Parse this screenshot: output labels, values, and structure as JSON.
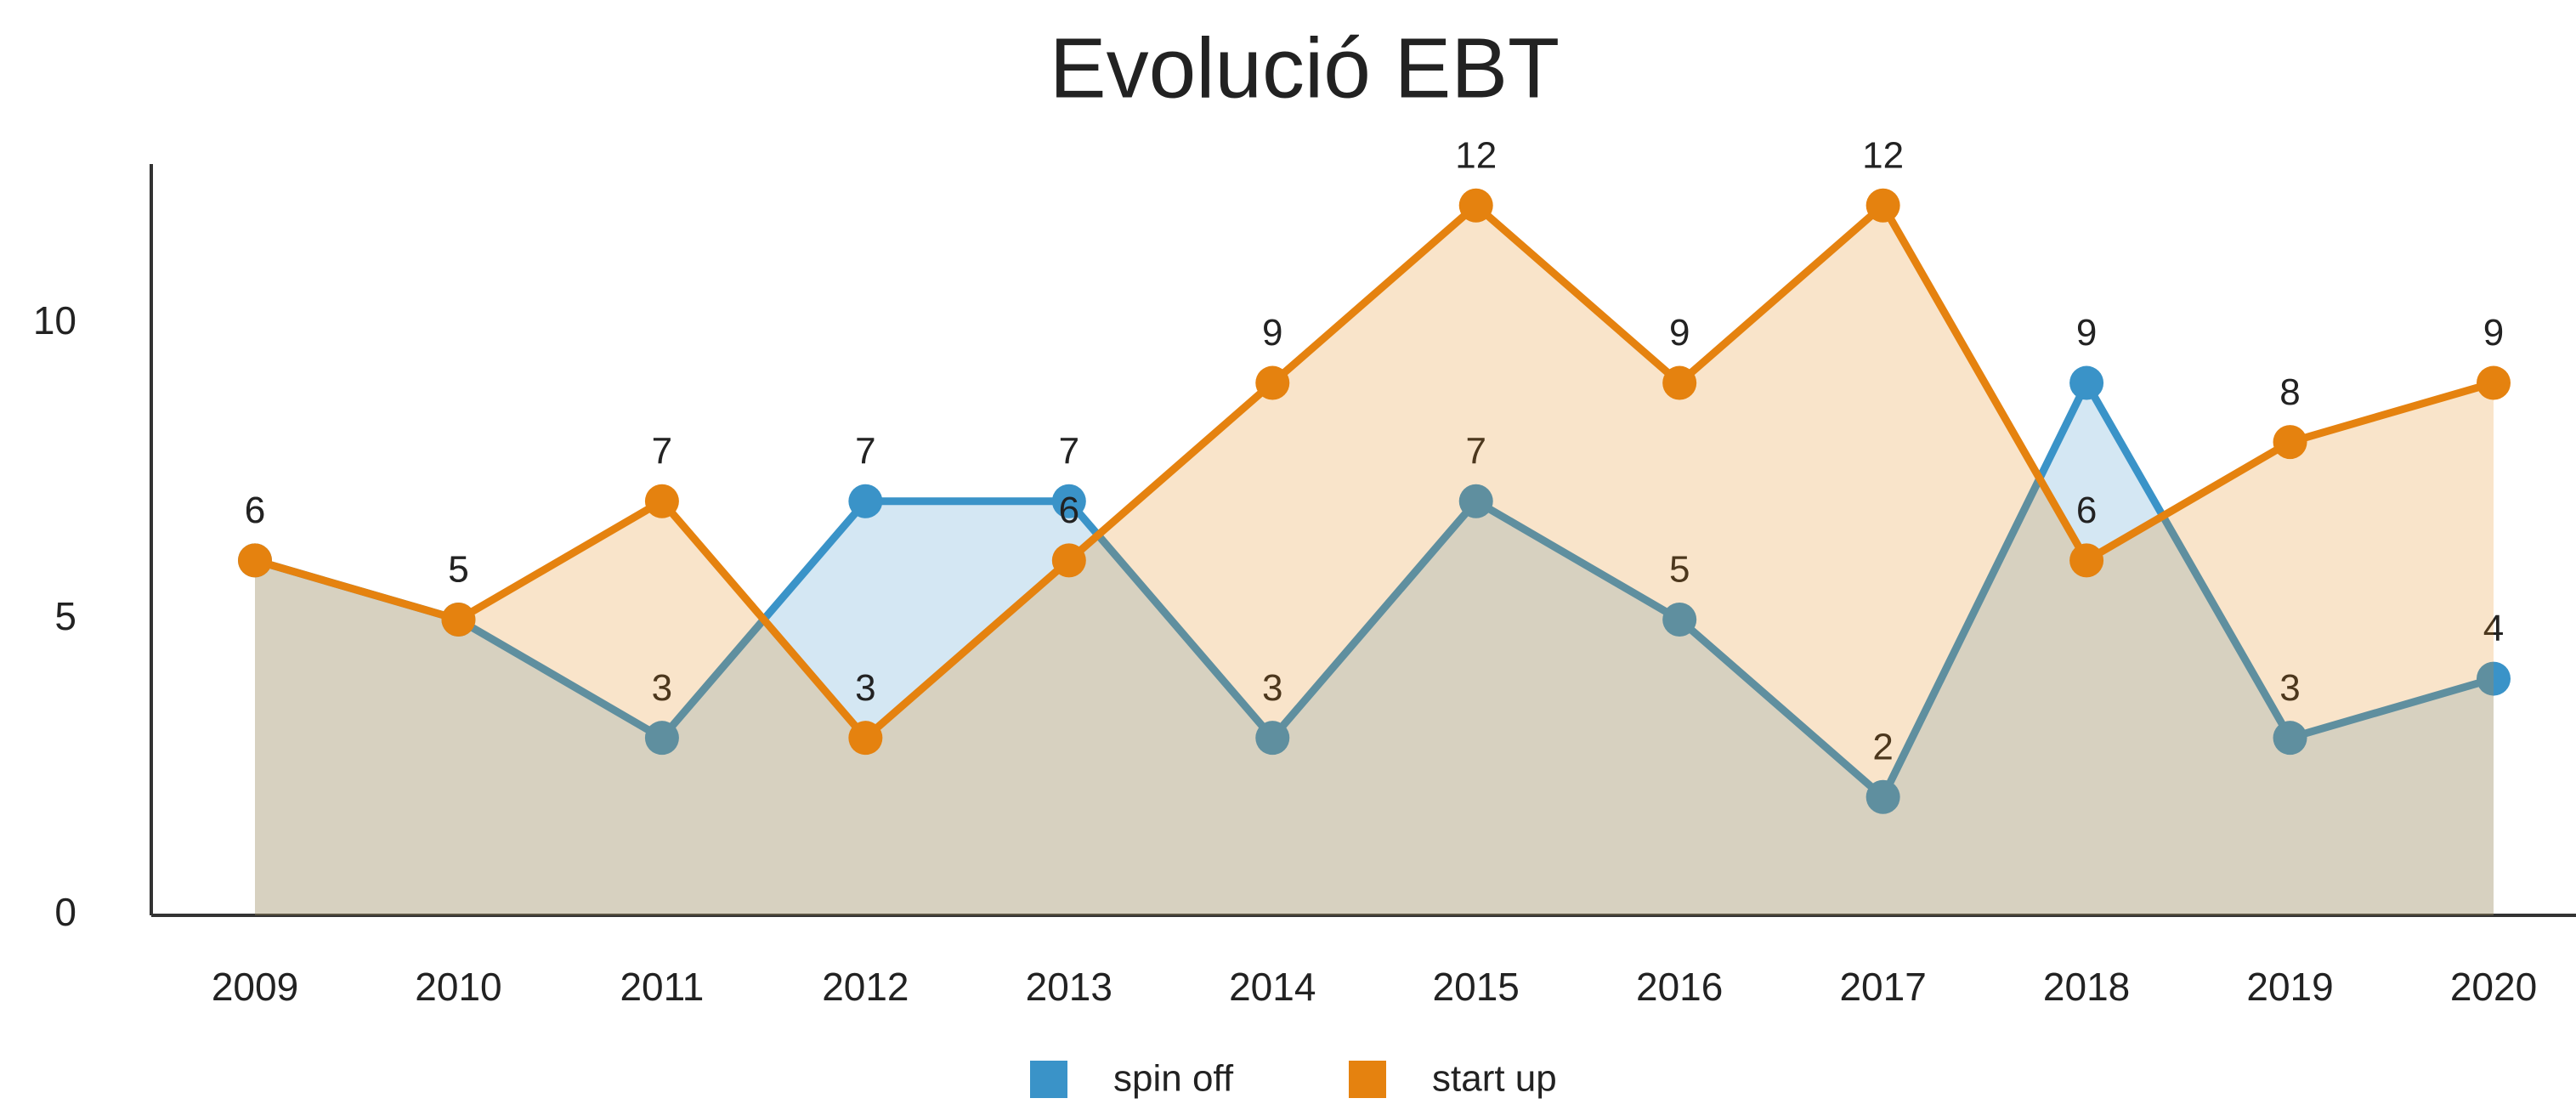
{
  "chart_data": {
    "type": "area",
    "title": "Evolució EBT",
    "categories": [
      "2009",
      "2010",
      "2011",
      "2012",
      "2013",
      "2014",
      "2015",
      "2016",
      "2017",
      "2018",
      "2019",
      "2020"
    ],
    "series": [
      {
        "name": "spin off",
        "color": "#3a93c8",
        "values": [
          6,
          5,
          3,
          7,
          7,
          3,
          7,
          5,
          2,
          9,
          3,
          4
        ]
      },
      {
        "name": "start up",
        "color": "#e5820f",
        "values": [
          6,
          5,
          7,
          3,
          6,
          9,
          12,
          9,
          12,
          6,
          8,
          9
        ]
      }
    ],
    "ylim": [
      0,
      12.7
    ],
    "yticks": [
      0,
      5,
      10
    ],
    "grid": false,
    "legend": "bottom"
  }
}
